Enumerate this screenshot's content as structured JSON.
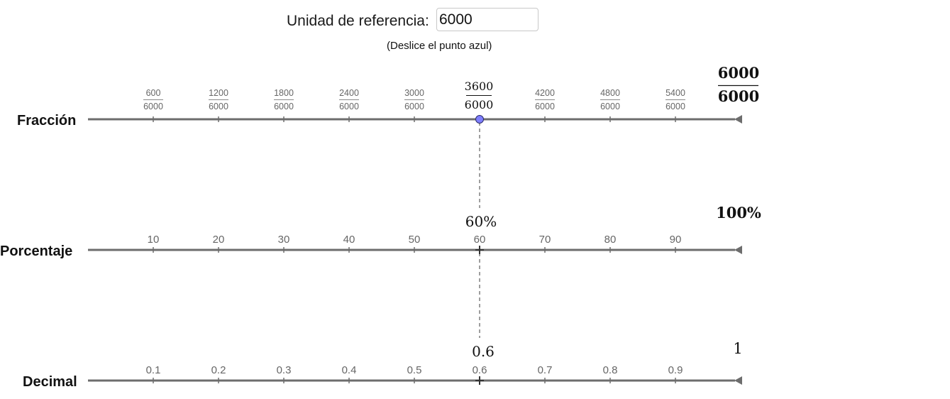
{
  "reference": {
    "label": "Unidad de referencia:",
    "value": "6000",
    "hint": "(Deslice el punto azul)"
  },
  "point_fraction": 0.6,
  "colors": {
    "axis": "#6d6d6d",
    "point": "#7f7fff",
    "guide": "#9e9e9e"
  },
  "rows": {
    "fraction": {
      "label": "Fracción",
      "ticks": [
        {
          "num": "600",
          "den": "6000"
        },
        {
          "num": "1200",
          "den": "6000"
        },
        {
          "num": "1800",
          "den": "6000"
        },
        {
          "num": "2400",
          "den": "6000"
        },
        {
          "num": "3000",
          "den": "6000"
        },
        {
          "num": "",
          "den": ""
        },
        {
          "num": "4200",
          "den": "6000"
        },
        {
          "num": "4800",
          "den": "6000"
        },
        {
          "num": "5400",
          "den": "6000"
        }
      ],
      "current": {
        "num": "3600",
        "den": "6000"
      },
      "end": {
        "num": "6000",
        "den": "6000"
      }
    },
    "percent": {
      "label": "Porcentaje",
      "ticks": [
        "10",
        "20",
        "30",
        "40",
        "50",
        "60",
        "70",
        "80",
        "90"
      ],
      "current": "60%",
      "end": "100%"
    },
    "decimal": {
      "label": "Decimal",
      "ticks": [
        "0.1",
        "0.2",
        "0.3",
        "0.4",
        "0.5",
        "0.6",
        "0.7",
        "0.8",
        "0.9"
      ],
      "current": "0.6",
      "end": "1"
    }
  }
}
